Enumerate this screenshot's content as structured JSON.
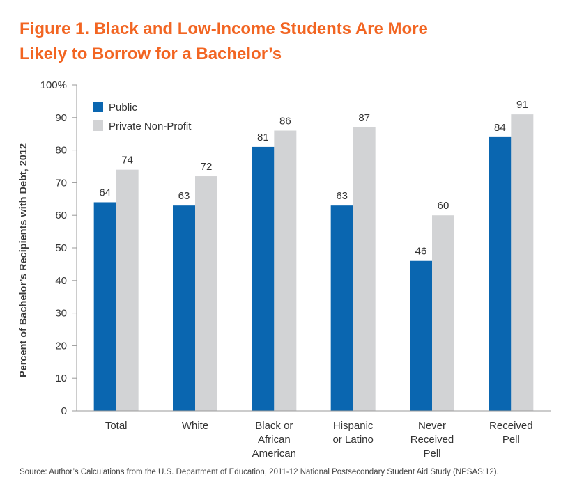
{
  "title_lines": [
    "Figure 1. Black and Low-Income Students Are More",
    "Likely to Borrow for a Bachelor’s"
  ],
  "source": "Source: Author’s Calculations from the U.S. Department of Education, 2011-12 National Postsecondary Student Aid Study (NPSAS:12).",
  "colors": {
    "title": "#f26522",
    "public": "#0a66b0",
    "private": "#d2d3d5",
    "axis": "#999999",
    "text": "#333333"
  },
  "chart_data": {
    "type": "bar",
    "title": "Figure 1. Black and Low-Income Students Are More Likely to Borrow for a Bachelor’s",
    "ylabel": "Percent of Bachelor’s Recipients with Debt, 2012",
    "xlabel": "",
    "ylim": [
      0,
      100
    ],
    "y_ticks": [
      "0",
      "10",
      "20",
      "30",
      "40",
      "50",
      "60",
      "70",
      "80",
      "90",
      "100%"
    ],
    "grid": false,
    "legend_position": "top-left",
    "categories": [
      [
        "Total"
      ],
      [
        "White"
      ],
      [
        "Black or",
        "African",
        "American"
      ],
      [
        "Hispanic",
        "or Latino"
      ],
      [
        "Never",
        "Received",
        "Pell"
      ],
      [
        "Received",
        "Pell"
      ]
    ],
    "series": [
      {
        "name": "Public",
        "color": "#0a66b0",
        "values": [
          64,
          63,
          81,
          63,
          46,
          84
        ]
      },
      {
        "name": "Private Non-Profit",
        "color": "#d2d3d5",
        "values": [
          74,
          72,
          86,
          87,
          60,
          91
        ]
      }
    ]
  }
}
